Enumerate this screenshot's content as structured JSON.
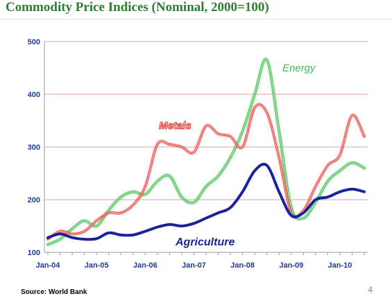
{
  "slide": {
    "title": "Commodity Price Indices (Nominal, 2000=100)",
    "source": "Source: World Bank",
    "page_number": "4"
  },
  "colors": {
    "title": "#2e7d32",
    "gridline": "#e0a0a0",
    "tick_label": "#1f3a93",
    "metals": "#e8312a",
    "energy": "#3fbf4f",
    "agriculture": "#1a239c"
  },
  "chart_data": {
    "type": "line",
    "title": "Commodity Price Indices (Nominal, 2000=100)",
    "xlabel": "",
    "ylabel": "",
    "x_ticks": [
      "Jan-04",
      "Jan-05",
      "Jan-06",
      "Jan-07",
      "Jan-08",
      "Jan-09",
      "Jan-10"
    ],
    "y_ticks": [
      100,
      200,
      300,
      400,
      500
    ],
    "ylim": [
      100,
      500
    ],
    "grid": "horizontal",
    "legend": "inline labels",
    "x": [
      "Jan-04",
      "Apr-04",
      "Jul-04",
      "Oct-04",
      "Jan-05",
      "Apr-05",
      "Jul-05",
      "Oct-05",
      "Jan-06",
      "Apr-06",
      "Jul-06",
      "Oct-06",
      "Jan-07",
      "Apr-07",
      "Jul-07",
      "Oct-07",
      "Jan-08",
      "Apr-08",
      "Jul-08",
      "Oct-08",
      "Jan-09",
      "Apr-09",
      "Jul-09",
      "Oct-09",
      "Jan-10",
      "Apr-10",
      "Jul-10"
    ],
    "series": [
      {
        "name": "Energy",
        "color": "#3fbf4f",
        "values": [
          115,
          125,
          145,
          160,
          150,
          180,
          205,
          215,
          210,
          235,
          245,
          205,
          195,
          225,
          245,
          280,
          330,
          400,
          465,
          330,
          185,
          165,
          195,
          235,
          255,
          270,
          260
        ]
      },
      {
        "name": "Metals",
        "color": "#e8312a",
        "values": [
          125,
          140,
          135,
          140,
          160,
          175,
          175,
          190,
          225,
          305,
          305,
          300,
          290,
          340,
          325,
          320,
          300,
          375,
          365,
          280,
          175,
          180,
          225,
          265,
          285,
          360,
          320
        ]
      },
      {
        "name": "Agriculture",
        "color": "#1a239c",
        "values": [
          128,
          135,
          128,
          125,
          126,
          137,
          133,
          133,
          140,
          148,
          153,
          150,
          155,
          165,
          175,
          185,
          215,
          255,
          265,
          215,
          170,
          175,
          200,
          205,
          215,
          220,
          215
        ]
      }
    ]
  }
}
